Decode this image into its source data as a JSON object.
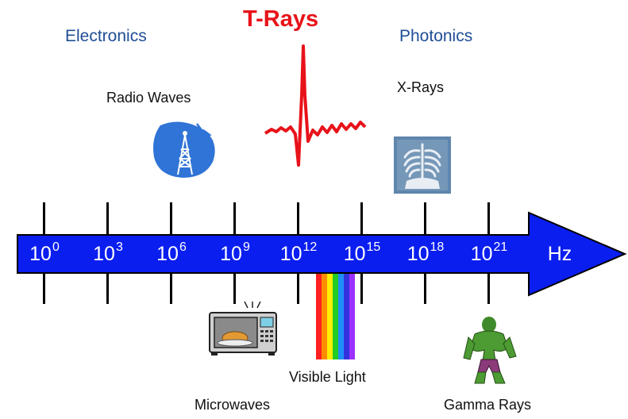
{
  "labels": {
    "electronics": "Electronics",
    "t_rays": "T-Rays",
    "photonics": "Photonics",
    "radio_waves": "Radio Waves",
    "x_rays": "X-Rays",
    "microwaves": "Microwaves",
    "visible_light": "Visible Light",
    "gamma_rays": "Gamma Rays"
  },
  "axis": {
    "unit": "Hz",
    "ticks": [
      {
        "base": "10",
        "exp": "0"
      },
      {
        "base": "10",
        "exp": "3"
      },
      {
        "base": "10",
        "exp": "6"
      },
      {
        "base": "10",
        "exp": "9"
      },
      {
        "base": "10",
        "exp": "12"
      },
      {
        "base": "10",
        "exp": "15"
      },
      {
        "base": "10",
        "exp": "18"
      },
      {
        "base": "10",
        "exp": "21"
      }
    ]
  },
  "colors": {
    "arrow_fill": "#0b1ef0",
    "title_blue": "#1f4e96",
    "t_rays_red": "#e8121a",
    "spectrum": [
      "#ff2020",
      "#ff8c00",
      "#ffee00",
      "#22cc22",
      "#1f8fff",
      "#3333dd",
      "#9b30ff"
    ]
  }
}
